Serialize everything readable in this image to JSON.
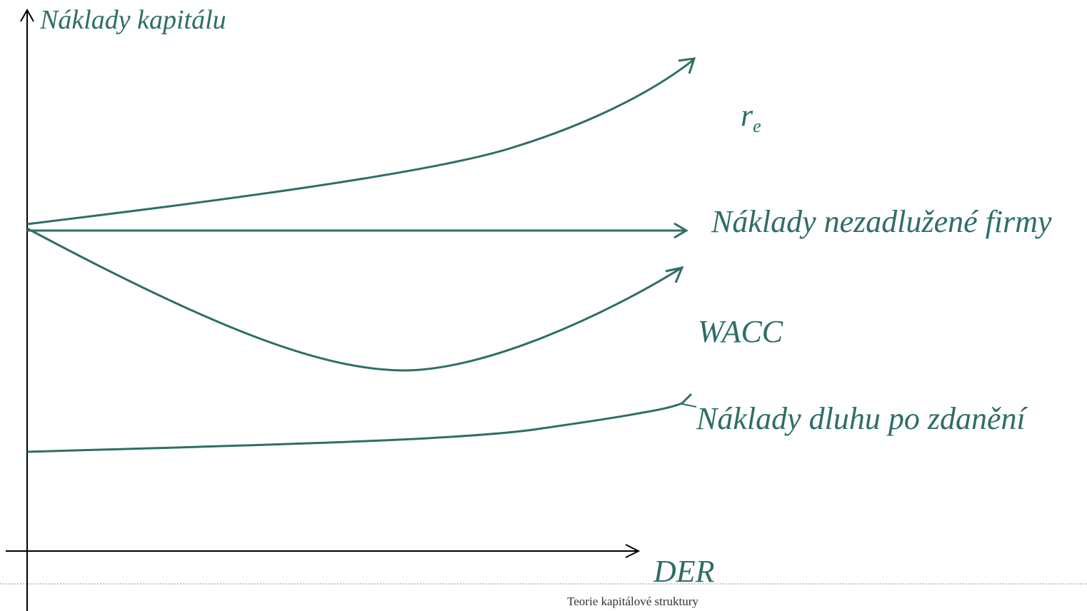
{
  "labels": {
    "y_axis": "Náklady kapitálu",
    "x_axis": "DER",
    "cost_of_equity_main": "r",
    "cost_of_equity_sub": "e",
    "unlevered_cost": "Náklady nezadlužené firmy",
    "wacc": "WACC",
    "after_tax_debt_cost": "Náklady dluhu po zdanění"
  },
  "footer": {
    "title": "Teorie kapitálové struktury"
  },
  "colors": {
    "curve": "#2E6E66",
    "axis": "#000000",
    "footer_line": "#7FA8A2",
    "footer_text": "#333333"
  }
}
